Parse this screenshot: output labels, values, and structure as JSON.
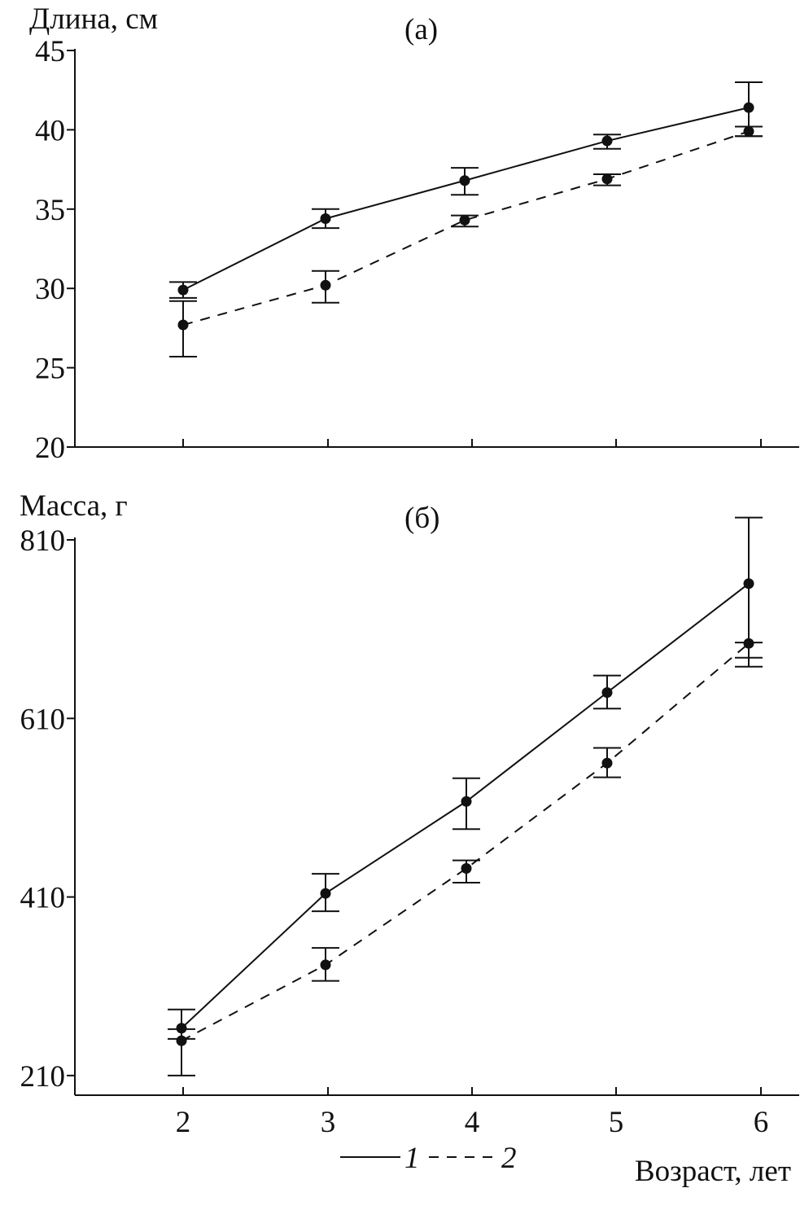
{
  "chart_data": [
    {
      "type": "line",
      "panel_label": "(а)",
      "ylabel": "Длина, см",
      "xlabel": "",
      "ylim": [
        20,
        45
      ],
      "yticks": [
        20,
        25,
        30,
        35,
        40,
        45
      ],
      "x": [
        2,
        3,
        4,
        5,
        6
      ],
      "series": [
        {
          "name": "1",
          "style": "solid",
          "values": [
            29.9,
            34.4,
            36.8,
            39.3,
            41.4
          ],
          "err_low": [
            29.4,
            33.8,
            35.9,
            38.8,
            39.6
          ],
          "err_high": [
            30.4,
            35.0,
            37.6,
            39.7,
            43.0
          ]
        },
        {
          "name": "2",
          "style": "dashed",
          "values": [
            27.7,
            30.2,
            34.3,
            36.9,
            39.9
          ],
          "err_low": [
            25.7,
            29.1,
            33.9,
            36.5,
            39.6
          ],
          "err_high": [
            29.2,
            31.1,
            34.6,
            37.2,
            40.2
          ]
        }
      ]
    },
    {
      "type": "line",
      "panel_label": "(б)",
      "ylabel": "Масса, г",
      "xlabel": "Возраст, лет",
      "ylim": [
        188,
        810
      ],
      "yticks": [
        210,
        410,
        610,
        810
      ],
      "x": [
        2,
        3,
        4,
        5,
        6
      ],
      "xticks": [
        "2",
        "3",
        "4",
        "5",
        "6"
      ],
      "series": [
        {
          "name": "1",
          "style": "solid",
          "values": [
            263,
            414,
            517,
            639,
            761
          ],
          "err_low": [
            251,
            394,
            486,
            621,
            668
          ],
          "err_high": [
            284,
            436,
            543,
            658,
            835
          ]
        },
        {
          "name": "2",
          "style": "dashed",
          "values": [
            249,
            334,
            442,
            560,
            694
          ],
          "err_low": [
            210,
            316,
            426,
            544,
            678
          ],
          "err_high": [
            262,
            353,
            451,
            577,
            695
          ]
        }
      ]
    }
  ],
  "legend": {
    "items": [
      {
        "label": "1",
        "style": "solid"
      },
      {
        "label": "2",
        "style": "dashed"
      }
    ]
  },
  "colors": {
    "line": "#111111",
    "background": "#ffffff"
  }
}
